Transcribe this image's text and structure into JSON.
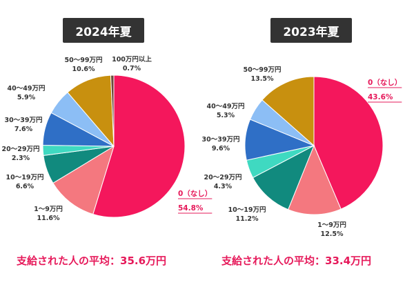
{
  "chart_data": [
    {
      "type": "pie",
      "title": "2024年夏",
      "slices": [
        {
          "name": "0（なし）",
          "value": 54.8,
          "label": "54.8%",
          "color": "#f4175c",
          "highlight": true
        },
        {
          "name": "1～9万円",
          "value": 11.6,
          "label": "11.6%",
          "color": "#f4787f"
        },
        {
          "name": "10～19万円",
          "value": 6.6,
          "label": "6.6%",
          "color": "#118a7e"
        },
        {
          "name": "20～29万円",
          "value": 2.3,
          "label": "2.3%",
          "color": "#3fd9c1"
        },
        {
          "name": "30～39万円",
          "value": 7.6,
          "label": "7.6%",
          "color": "#2f6fc6"
        },
        {
          "name": "40～49万円",
          "value": 5.9,
          "label": "5.9%",
          "color": "#8cbef5"
        },
        {
          "name": "50～99万円",
          "value": 10.6,
          "label": "10.6%",
          "color": "#c8900f"
        },
        {
          "name": "100万円以上",
          "value": 0.7,
          "label": "0.7%",
          "color": "#6b4a3a"
        }
      ],
      "average_text": "支給された人の平均：35.6万円"
    },
    {
      "type": "pie",
      "title": "2023年夏",
      "slices": [
        {
          "name": "0（なし）",
          "value": 43.6,
          "label": "43.6%",
          "color": "#f4175c",
          "highlight": true
        },
        {
          "name": "1～9万円",
          "value": 12.5,
          "label": "12.5%",
          "color": "#f4787f"
        },
        {
          "name": "10～19万円",
          "value": 11.2,
          "label": "11.2%",
          "color": "#118a7e"
        },
        {
          "name": "20～29万円",
          "value": 4.3,
          "label": "4.3%",
          "color": "#3fd9c1"
        },
        {
          "name": "30～39万円",
          "value": 9.6,
          "label": "9.6%",
          "color": "#2f6fc6"
        },
        {
          "name": "40～49万円",
          "value": 5.3,
          "label": "5.3%",
          "color": "#8cbef5"
        },
        {
          "name": "50～99万円",
          "value": 13.5,
          "label": "13.5%",
          "color": "#c8900f"
        }
      ],
      "average_text": "支給された人の平均：33.4万円"
    }
  ]
}
